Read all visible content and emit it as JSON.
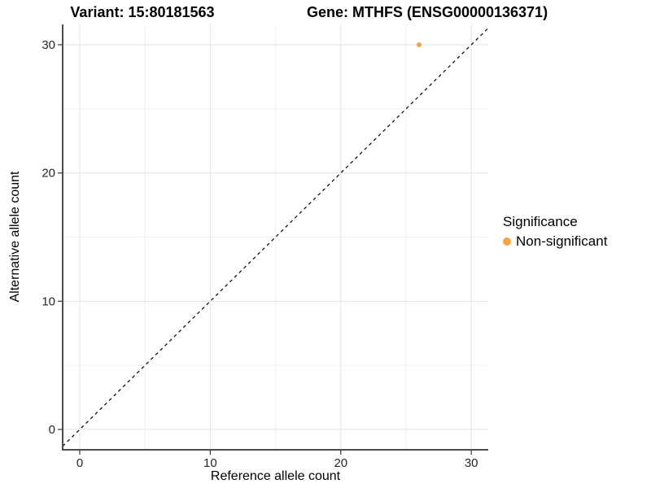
{
  "chart_data": {
    "type": "scatter",
    "title_left": "Variant: 15:80181563",
    "title_right": "Gene: MTHFS (ENSG00000136371)",
    "xlabel": "Reference allele count",
    "ylabel": "Alternative allele count",
    "xlim": [
      -1.3,
      31.3
    ],
    "ylim": [
      -1.5,
      31.5
    ],
    "xticks": [
      0,
      10,
      20,
      30
    ],
    "yticks": [
      0,
      10,
      20,
      30
    ],
    "minor_xticks": [
      5,
      15,
      25
    ],
    "minor_yticks": [
      5,
      15,
      25
    ],
    "grid": "major and minor, light gray, white background",
    "series": [
      {
        "name": "Non-significant",
        "color": "#F9A242",
        "points": [
          [
            26,
            30
          ]
        ]
      }
    ],
    "reference_line": {
      "equation": "y = x",
      "style": "dashed",
      "color": "#000000"
    },
    "legend": {
      "title": "Significance",
      "position": "right",
      "items": [
        {
          "label": "Non-significant",
          "color": "#F9A242",
          "marker": "circle"
        }
      ]
    },
    "colors": {
      "grid_major": "#E3E3E3",
      "grid_minor": "#F0F0F0",
      "axis_line": "#4D4D4D",
      "tick_mark": "#333333",
      "tick_text": "#262626"
    }
  }
}
